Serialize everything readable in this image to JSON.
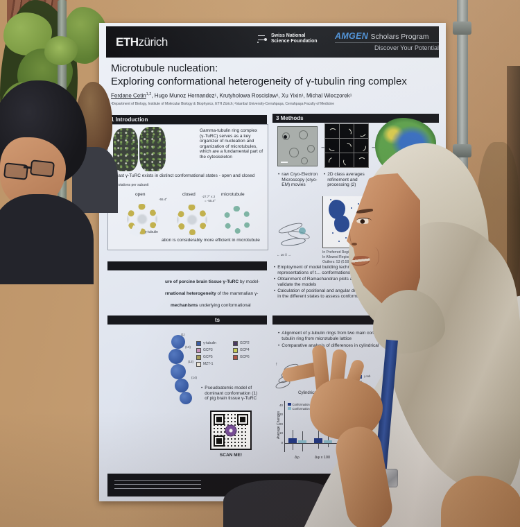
{
  "colors": {
    "amgen_blue": "#4a90d9",
    "bar_dark": "#1f3a8c",
    "bar_light": "#8cc3d6",
    "poster_header_bg": "#17181d"
  },
  "poster": {
    "brand": {
      "eth_bold": "ETH",
      "eth_light": "zürich",
      "snsf_line1": "Swiss National",
      "snsf_line2": "Science Foundation",
      "amgen_name": "AMGEN",
      "amgen_program": "Scholars Program",
      "amgen_tag": "Discover Your Potential"
    },
    "title_line1": "Microtubule nucleation:",
    "title_line2": "Exploring conformational heterogeneity of γ-tubulin ring complex",
    "authors_first": "Ferdane Cetin",
    "authors_first_sup": "1,2",
    "authors_rest": ", Hugo Munoz Hernandez¹, Krutyholowa Roscislaw¹, Xu Yixin¹, Michal Wieczorek¹",
    "affiliations": "¹Department of Biology, Institute of Molecular Biology & Biophysics, ETH Zürich; ²Istanbul University-Cerrahpaşa, Cerrahpaşa Faculty of Medicine",
    "intro": {
      "header": "1 Introduction",
      "para": "Gamma-tubulin ring complex (γ-TuRC) serves as a key organizer of nucleation and organization of microtubules, which are a fundamental part of the cytoskeleton",
      "states_line": "Yeast γ-TuRC exists in distinct conformational states - open and closed",
      "rotations_label": "Rotations per subunit",
      "ring_labels": {
        "open": "open",
        "closed": "closed",
        "micro": "microtubule"
      },
      "angle_open": "-55.4°",
      "angle_closed_1": "-27.7° x 2",
      "angle_closed_2": "= -55.4°",
      "gamma_label": "γ-tubulin",
      "bottom_line": "ation is considerably more efficient in microtubule"
    },
    "methods": {
      "header": "3 Methods",
      "bullet1": "raw Cryo-Electron Microscopy (cryo-EM) movies",
      "bullet2": "2D class averages refinement and processing (2)",
      "scale_label": "← 10 Å →",
      "rama_stats": [
        "In Preferred Regions:",
        "In Allowed Regions:",
        "Outliers: 53 (0.59%)"
      ],
      "bullets": [
        "Employment of model building techniques and detailed structural representations of t… conformations",
        "Obtainment of Ramachandran plots and Molprob re… of outliers to validate the models",
        "Calculation of positional and angular differences betwee… tubulin rings in the different states to assess conformatio… heterogeneity"
      ]
    },
    "aims": {
      "line1_bold": "ure of porcine brain tissue γ-TuRC",
      "line1_rest": " by model-",
      "line2_bold": "rmational heterogeneity",
      "line2_rest": " of the mammalian γ-",
      "line3_bold": "mechanisms",
      "line3_rest": " underlying conformational"
    },
    "results": {
      "header_fragment": "ts",
      "legend": [
        {
          "label": "γ-tubulin",
          "color": "#3a5fa8"
        },
        {
          "label": "GCP2",
          "color": "#4a3a66"
        },
        {
          "label": "GCP3",
          "color": "#c792bd"
        },
        {
          "label": "GCP4",
          "color": "#ccd45e"
        },
        {
          "label": "GCP5",
          "color": "#a9a15d"
        },
        {
          "label": "GCP6",
          "color": "#b5564a"
        },
        {
          "label": "MZT-1",
          "color": "#efe9da"
        }
      ],
      "subunit_numbers": [
        "(1)",
        "(13)",
        "(13)",
        "(14)"
      ],
      "bullet": "Pseudoatomic model of dominant conformation (1) of pig brain tissue γ-TuRC",
      "scan_label": "SCAN ME!"
    },
    "analysis": {
      "bullet1a": "Alignment of γ-tubulin rings from two main conform",
      "bullet1b": "tubulin ring from microtubule lattice",
      "bullet2": "Comparative analysis of differences in cylindrical",
      "mini_legend_label": "γ-tub"
    },
    "footer": {
      "contact_label": "Contact:",
      "contact_email": "ferdane.cetin@ogr.iuc"
    }
  },
  "chart_data": {
    "type": "bar",
    "title": "Cylindrical C…",
    "categories": [
      "Δρ",
      "Δφ x 100",
      "Δz"
    ],
    "series": [
      {
        "name": "Conformation 2",
        "color": "#1f3a8c",
        "values": [
          4.5,
          5,
          16
        ],
        "whiskers": [
          [
            -8,
            14
          ],
          [
            -6,
            13
          ],
          [
            -2,
            33
          ]
        ]
      },
      {
        "name": "Conformation 3",
        "color": "#8cc3d6",
        "values": [
          3,
          2.5,
          9
        ],
        "whiskers": [
          [
            -9,
            12
          ],
          [
            -5,
            9
          ],
          [
            -6,
            20
          ]
        ]
      }
    ],
    "ylabel": "Average Changes",
    "yticks": [
      0,
      10,
      20,
      30,
      40
    ],
    "ylim": [
      -10,
      45
    ],
    "legend_position": "top-left",
    "grid": false
  }
}
